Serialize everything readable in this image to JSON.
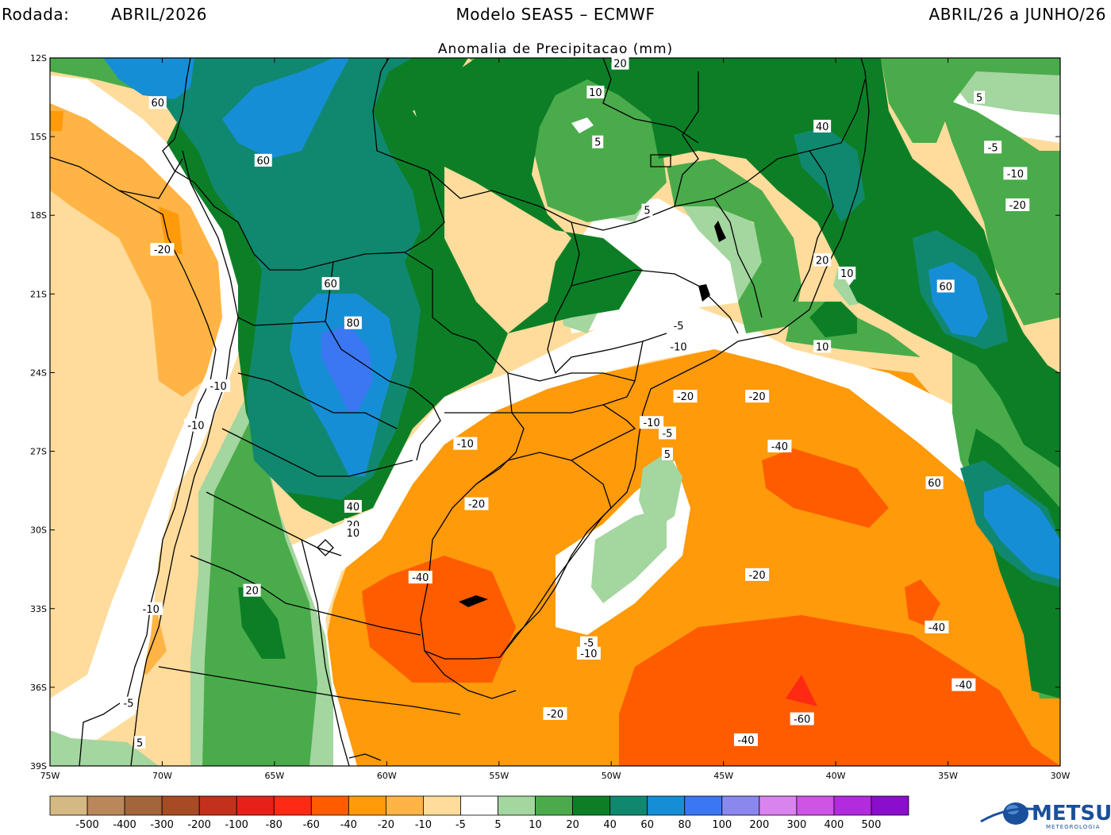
{
  "header": {
    "rodada_label": "Rodada:",
    "rodada_value": "ABRIL/2026",
    "model": "Modelo SEAS5 – ECMWF",
    "period": "ABRIL/26 a JUNHO/26"
  },
  "subtitle": "Anomalia de Precipitacao (mm)",
  "axes": {
    "lat_labels": [
      "12S",
      "15S",
      "18S",
      "21S",
      "24S",
      "27S",
      "30S",
      "33S",
      "36S",
      "39S"
    ],
    "lon_labels": [
      "75W",
      "70W",
      "65W",
      "60W",
      "55W",
      "50W",
      "45W",
      "40W",
      "35W",
      "30W"
    ]
  },
  "colorbar": {
    "colors": [
      "#d4b982",
      "#b9875a",
      "#a2663a",
      "#a74b24",
      "#c3301b",
      "#e8201a",
      "#ff2a13",
      "#ff5c00",
      "#ff9a0a",
      "#ffb445",
      "#ffdc9c",
      "#ffffff",
      "#a4d69f",
      "#4aab4b",
      "#0c7f26",
      "#108870",
      "#168ed6",
      "#3b77f2",
      "#8a88ee",
      "#d983ee",
      "#ce54e6",
      "#b22bdd",
      "#8a0ecb"
    ],
    "labels": [
      "-500",
      "-400",
      "-300",
      "-200",
      "-100",
      "-80",
      "-60",
      "-40",
      "-20",
      "-10",
      "-5",
      "5",
      "10",
      "20",
      "40",
      "60",
      "80",
      "100",
      "200",
      "300",
      "400",
      "500"
    ]
  },
  "map_labels": [
    {
      "text": "60",
      "lon": -70.2,
      "lat": -13.7
    },
    {
      "text": "60",
      "lon": -65.5,
      "lat": -15.9
    },
    {
      "text": "60",
      "lon": -62.5,
      "lat": -20.6
    },
    {
      "text": "80",
      "lon": -61.5,
      "lat": -22.1
    },
    {
      "text": "-20",
      "lon": -70.0,
      "lat": -19.3
    },
    {
      "text": "-10",
      "lon": -67.5,
      "lat": -24.5
    },
    {
      "text": "-10",
      "lon": -68.5,
      "lat": -26.0
    },
    {
      "text": "40",
      "lon": -61.5,
      "lat": -29.1
    },
    {
      "text": "20",
      "lon": -61.5,
      "lat": -29.8
    },
    {
      "text": "10",
      "lon": -61.5,
      "lat": -30.1
    },
    {
      "text": "20",
      "lon": -66.0,
      "lat": -32.3
    },
    {
      "text": "-10",
      "lon": -70.5,
      "lat": -33.0
    },
    {
      "text": "-5",
      "lon": -71.5,
      "lat": -36.6
    },
    {
      "text": "5",
      "lon": -71.0,
      "lat": -38.1
    },
    {
      "text": "-10",
      "lon": -56.5,
      "lat": -26.7
    },
    {
      "text": "-20",
      "lon": -56.0,
      "lat": -29.0
    },
    {
      "text": "-40",
      "lon": -58.5,
      "lat": -31.8
    },
    {
      "text": "20",
      "lon": -49.6,
      "lat": -12.2
    },
    {
      "text": "10",
      "lon": -50.7,
      "lat": -13.3
    },
    {
      "text": "5",
      "lon": -50.6,
      "lat": -15.2
    },
    {
      "text": "5",
      "lon": -48.4,
      "lat": -17.8
    },
    {
      "text": "40",
      "lon": -40.6,
      "lat": -14.6
    },
    {
      "text": "20",
      "lon": -40.6,
      "lat": -19.7
    },
    {
      "text": "10",
      "lon": -39.5,
      "lat": -20.2
    },
    {
      "text": "10",
      "lon": -40.6,
      "lat": -23.0
    },
    {
      "text": "-5",
      "lon": -47.0,
      "lat": -22.2
    },
    {
      "text": "-10",
      "lon": -47.0,
      "lat": -23.0
    },
    {
      "text": "-20",
      "lon": -46.7,
      "lat": -24.9
    },
    {
      "text": "-10",
      "lon": -48.2,
      "lat": -25.9
    },
    {
      "text": "-5",
      "lon": -47.5,
      "lat": -26.3
    },
    {
      "text": "5",
      "lon": -47.5,
      "lat": -27.1
    },
    {
      "text": "-20",
      "lon": -43.5,
      "lat": -24.9
    },
    {
      "text": "-40",
      "lon": -42.5,
      "lat": -26.8
    },
    {
      "text": "-20",
      "lon": -43.5,
      "lat": -31.7
    },
    {
      "text": "-5",
      "lon": -51.0,
      "lat": -34.3
    },
    {
      "text": "-10",
      "lon": -51.0,
      "lat": -34.7
    },
    {
      "text": "-20",
      "lon": -52.5,
      "lat": -37.0
    },
    {
      "text": "-40",
      "lon": -44.0,
      "lat": -38.0
    },
    {
      "text": "-60",
      "lon": -41.5,
      "lat": -37.2
    },
    {
      "text": "-40",
      "lon": -35.5,
      "lat": -33.7
    },
    {
      "text": "-40",
      "lon": -34.3,
      "lat": -35.9
    },
    {
      "text": "5",
      "lon": -33.6,
      "lat": -13.5
    },
    {
      "text": "-5",
      "lon": -33.0,
      "lat": -15.4
    },
    {
      "text": "-10",
      "lon": -32.0,
      "lat": -16.4
    },
    {
      "text": "-20",
      "lon": -31.9,
      "lat": -17.6
    },
    {
      "text": "60",
      "lon": -35.1,
      "lat": -20.7
    },
    {
      "text": "60",
      "lon": -35.6,
      "lat": -28.2
    }
  ],
  "logo": {
    "text": "METSUL",
    "sub": "METEOROLOGIA"
  }
}
